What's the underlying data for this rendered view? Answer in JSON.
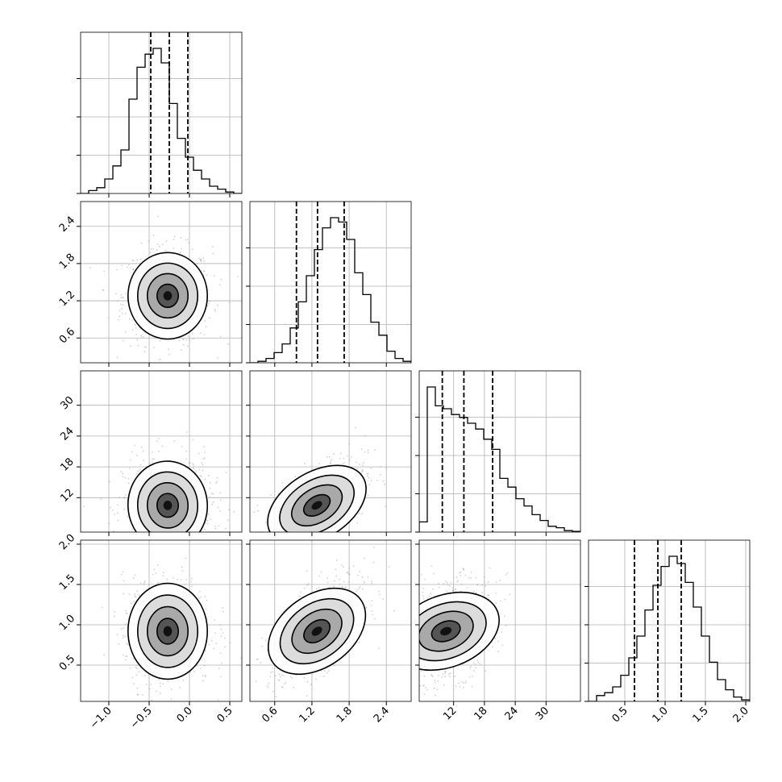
{
  "chart_data": {
    "type": "corner",
    "title": "",
    "parameters": [
      {
        "range": [
          -1.35,
          0.65
        ],
        "ticks": [
          -1.0,
          -0.5,
          0.0,
          0.5
        ],
        "tick_labels": [
          "−1.0",
          "−0.5",
          "0.0",
          "0.5"
        ],
        "quantiles": [
          -0.48,
          -0.25,
          -0.02
        ]
      },
      {
        "range": [
          0.2,
          2.8
        ],
        "ticks": [
          0.6,
          1.2,
          1.8,
          2.4
        ],
        "tick_labels": [
          "0.6",
          "1.2",
          "1.8",
          "2.4"
        ],
        "quantiles": [
          0.95,
          1.29,
          1.72
        ]
      },
      {
        "range": [
          5.3,
          36.7
        ],
        "ticks": [
          12,
          18,
          24,
          30
        ],
        "tick_labels": [
          "12",
          "18",
          "24",
          "30"
        ],
        "quantiles": [
          9.8,
          14.0,
          19.6
        ]
      },
      {
        "range": [
          0.05,
          2.05
        ],
        "ticks": [
          0.5,
          1.0,
          1.5,
          2.0
        ],
        "tick_labels": [
          "0.5",
          "1.0",
          "1.5",
          "2.0"
        ],
        "quantiles": [
          0.62,
          0.91,
          1.2
        ]
      }
    ],
    "histograms": [
      [
        0,
        0.02,
        0.04,
        0.1,
        0.19,
        0.3,
        0.65,
        0.87,
        0.96,
        1.0,
        0.9,
        0.62,
        0.38,
        0.25,
        0.16,
        0.1,
        0.05,
        0.03,
        0.01,
        0
      ],
      [
        0,
        0.01,
        0.03,
        0.07,
        0.13,
        0.24,
        0.42,
        0.6,
        0.78,
        0.93,
        1.0,
        0.97,
        0.85,
        0.62,
        0.47,
        0.28,
        0.19,
        0.08,
        0.03,
        0.01
      ],
      [
        0.07,
        1.0,
        0.87,
        0.85,
        0.81,
        0.79,
        0.75,
        0.71,
        0.64,
        0.57,
        0.37,
        0.31,
        0.23,
        0.18,
        0.12,
        0.08,
        0.04,
        0.03,
        0.01,
        0.005
      ],
      [
        0,
        0.04,
        0.06,
        0.1,
        0.18,
        0.3,
        0.45,
        0.63,
        0.8,
        0.93,
        1.0,
        0.95,
        0.82,
        0.65,
        0.45,
        0.27,
        0.15,
        0.08,
        0.03,
        0.01
      ]
    ],
    "correlations": [
      [
        1,
        0,
        0.05,
        0
      ],
      [
        0,
        1,
        0.6,
        0.65
      ],
      [
        0.05,
        0.6,
        1,
        0.35
      ],
      [
        0,
        0.65,
        0.35,
        1
      ]
    ],
    "modes": [
      -0.27,
      1.28,
      10.5,
      0.92
    ],
    "spreads": [
      0.24,
      0.34,
      4.2,
      0.29
    ],
    "grid": true
  }
}
